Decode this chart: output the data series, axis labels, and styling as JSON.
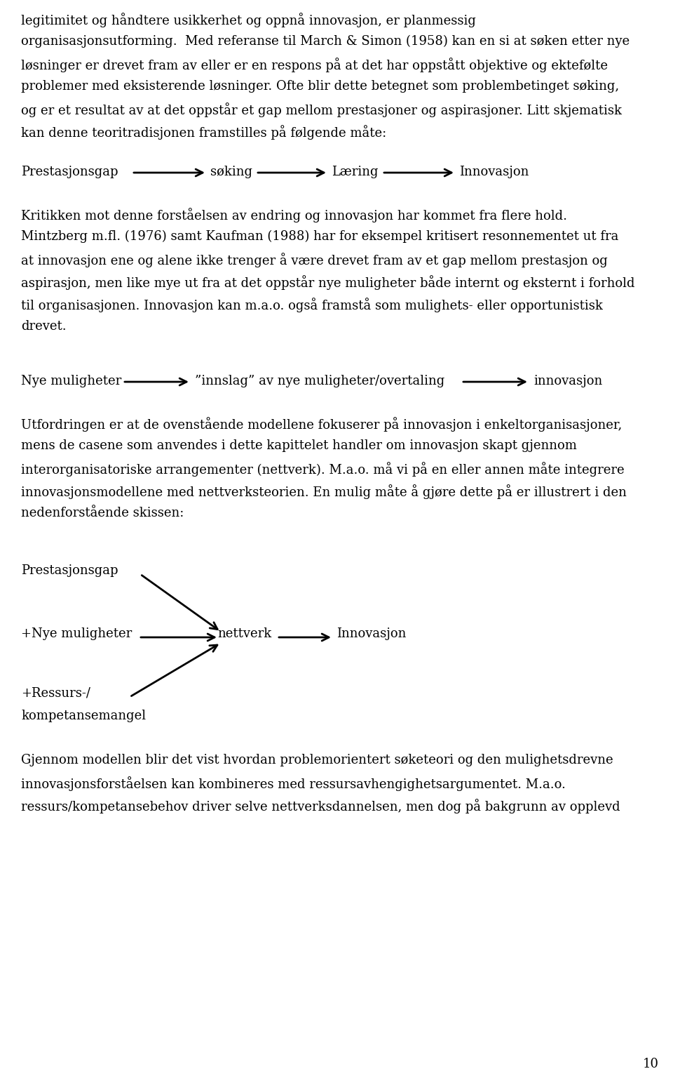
{
  "bg_color": "#ffffff",
  "text_color": "#000000",
  "font_size": 13.0,
  "page_number": "10",
  "para1_lines": [
    "legitimitet og håndtere usikkerhet og oppnå innovasjon, er planmessig",
    "organisasjonsutforming.  Med referanse til March & Simon (1958) kan en si at søken etter nye",
    "løsninger er drevet fram av eller er en respons på at det har oppstått objektive og ektefjelte",
    "problemer med eksisterende løsninger. Ofte blir dette betegnet som problembetinget søking,",
    "og er et resultat av at det oppstår et gap mellom prestasjoner og aspirasjoner. Litt skjematisk",
    "kan denne teoritradisjonen framstilles på følgende måte:"
  ],
  "diag1_labels": [
    "Prestasjonsgap",
    "søking",
    "Læring",
    "Innovasjon"
  ],
  "para2_lines": [
    "Kritikken mot denne forståelsen av endring og innovasjon har kommet fra flere hold.",
    "Mintzberg m.fl. (1976) samt Kaufman (1988) har for eksempel kritisert resonnementet ut fra",
    "at innovasjon ene og alene ikke trenger å være drevet fram av et gap mellom prestasjon og",
    "aspirasjon, men like mye ut fra at det oppstår nye muligheter både internt og eksternt i forhold",
    "til organisasjonen. Innovasjon kan m.a.o. også framstå som mulighets- eller opportunistisk",
    "drevet."
  ],
  "diag2_labels": [
    "Nye muligheter",
    "”innslag” av nye muligheter/overtaling",
    "innovasjon"
  ],
  "para3_lines": [
    "Utfordringen er at de ovenstående modellene fokuserer på innovasjon i enkeltorganisasjoner,",
    "mens de casene som anvendes i dette kapittelet handler om innovasjon skapt gjennom",
    "interorganisatoriske arrangementer (nettverk). M.a.o. må vi på en eller annen måte integrere",
    "innovasjonsmodellene med nettverksteorien. En mulig måte å gjøre dette på er illustrert i den",
    "nedenforstående skissen:"
  ],
  "diag3_labels": [
    "Prestasjonsgap",
    "+Nye muligheter",
    "nettverk",
    "Innovasjon",
    "+Ressurs-/",
    "kompetansemangel"
  ],
  "para4_lines": [
    "Gjennom modellen blir det vist hvordan problemorientert søketeori og den mulighetsdrevne",
    "innovasjonsforståelsen kan kombineres med ressursavhengighetsargumentet. M.a.o.",
    "ressurs/kompetansebehov driver selve nettverksdannelsen, men dog på bakgrunn av opplevd"
  ]
}
